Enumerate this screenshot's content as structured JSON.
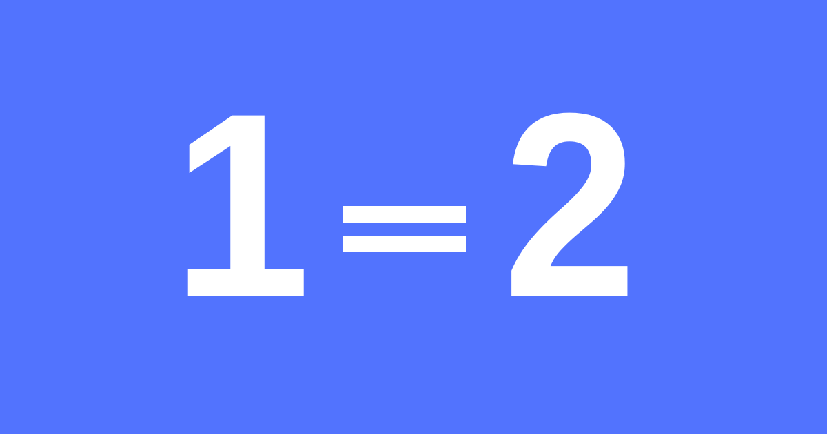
{
  "equation": {
    "left_operand": "1",
    "operator": "=",
    "right_operand": "2"
  },
  "colors": {
    "background": "#5273fe",
    "foreground": "#ffffff"
  }
}
